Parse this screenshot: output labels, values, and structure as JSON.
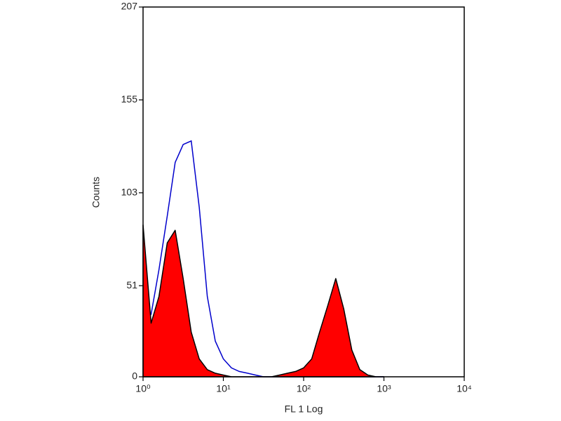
{
  "chart_data": {
    "type": "histogram-overlay",
    "xlabel": "FL 1 Log",
    "ylabel": "Counts",
    "log_x": true,
    "xlim": [
      1,
      10000
    ],
    "xticks": [
      {
        "value": 1,
        "label": "10⁰"
      },
      {
        "value": 10,
        "label": "10¹"
      },
      {
        "value": 100,
        "label": "10²"
      },
      {
        "value": 1000,
        "label": "10³"
      },
      {
        "value": 10000,
        "label": "10⁴"
      }
    ],
    "ylim": [
      0,
      207
    ],
    "yticks": [
      0,
      51,
      103,
      155,
      207
    ],
    "x": [
      1,
      1.26,
      1.58,
      2,
      2.51,
      3.16,
      3.98,
      5.01,
      6.31,
      7.94,
      10,
      12.6,
      15.8,
      20,
      25.1,
      31.6,
      39.8,
      50.1,
      63.1,
      79.4,
      100,
      126,
      158,
      200,
      251,
      316,
      398,
      501,
      631,
      794,
      1000
    ],
    "series": [
      {
        "color": "#0000cc",
        "style": "line",
        "values": [
          30,
          35,
          60,
          90,
          120,
          130,
          132,
          95,
          45,
          20,
          10,
          5,
          3,
          2,
          1,
          0,
          0,
          0,
          0,
          0,
          0,
          0,
          0,
          0,
          0,
          0,
          0,
          0,
          0,
          0,
          0
        ]
      },
      {
        "color": "#ff0000",
        "style": "area",
        "values": [
          85,
          30,
          45,
          75,
          82,
          55,
          25,
          10,
          4,
          2,
          1,
          0,
          0,
          0,
          0,
          0,
          0,
          1,
          2,
          3,
          5,
          10,
          25,
          40,
          55,
          38,
          15,
          4,
          1,
          0,
          0
        ]
      }
    ]
  }
}
